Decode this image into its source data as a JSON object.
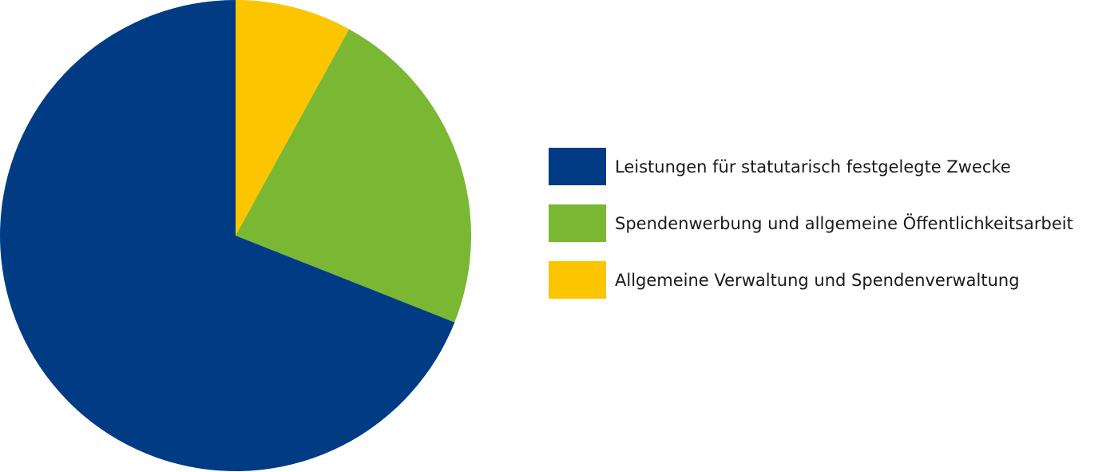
{
  "chart_data": {
    "type": "pie",
    "categories": [
      "Leistungen für statutarisch festgelegte Zwecke",
      "Spendenwerbung und allgemeine Öffentlichkeitsarbeit",
      "Allgemeine Verwaltung und Spendenverwaltung"
    ],
    "values": [
      69,
      23,
      8
    ],
    "colors": [
      "#003b84",
      "#7ab833",
      "#fdc400"
    ],
    "legend": "right"
  }
}
